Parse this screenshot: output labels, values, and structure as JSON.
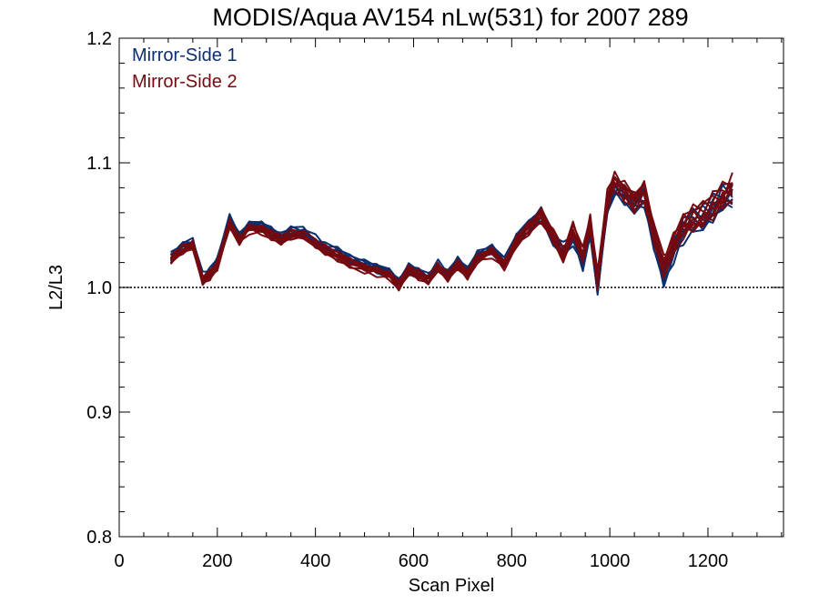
{
  "chart_data": {
    "type": "line",
    "title": "MODIS/Aqua AV154 nLw(531) for 2007 289",
    "xlabel": "Scan Pixel",
    "ylabel": "L2/L3",
    "xlim": [
      0,
      1354
    ],
    "ylim": [
      0.8,
      1.2
    ],
    "x_ticks": [
      0,
      200,
      400,
      600,
      800,
      1000,
      1200
    ],
    "x_tick_labels": [
      "0",
      "200",
      "400",
      "600",
      "800",
      "1000",
      "1200"
    ],
    "y_ticks": [
      0.8,
      0.9,
      1.0,
      1.1,
      1.2
    ],
    "y_tick_labels": [
      "0.8",
      "0.9",
      "1.0",
      "1.1",
      "1.2"
    ],
    "reference_line": {
      "y": 1.0,
      "style": "dotted"
    },
    "legend_position": "top-left",
    "grid": false,
    "colors": {
      "mirror_side_1": "#0b2f6e",
      "mirror_side_2": "#740a0f"
    },
    "x": [
      105,
      130,
      150,
      170,
      185,
      200,
      225,
      245,
      265,
      290,
      310,
      330,
      350,
      375,
      400,
      420,
      445,
      470,
      500,
      525,
      550,
      570,
      590,
      610,
      630,
      650,
      670,
      690,
      710,
      730,
      760,
      785,
      810,
      835,
      860,
      885,
      905,
      925,
      945,
      960,
      975,
      995,
      1010,
      1030,
      1050,
      1070,
      1090,
      1110,
      1130,
      1150,
      1170,
      1190,
      1210,
      1230,
      1250
    ],
    "series": [
      {
        "name": "Mirror-Side 1",
        "values": [
          1.024,
          1.032,
          1.036,
          1.008,
          1.012,
          1.02,
          1.055,
          1.04,
          1.05,
          1.05,
          1.045,
          1.04,
          1.045,
          1.045,
          1.038,
          1.032,
          1.028,
          1.022,
          1.018,
          1.015,
          1.012,
          1.004,
          1.016,
          1.012,
          1.008,
          1.018,
          1.01,
          1.02,
          1.012,
          1.025,
          1.03,
          1.02,
          1.04,
          1.05,
          1.06,
          1.04,
          1.03,
          1.04,
          1.02,
          1.045,
          1.0,
          1.065,
          1.08,
          1.075,
          1.068,
          1.075,
          1.04,
          1.012,
          1.03,
          1.045,
          1.052,
          1.055,
          1.062,
          1.07,
          1.075
        ]
      },
      {
        "name": "Mirror-Side 2",
        "values": [
          1.022,
          1.03,
          1.034,
          1.006,
          1.01,
          1.018,
          1.052,
          1.038,
          1.047,
          1.046,
          1.042,
          1.038,
          1.042,
          1.042,
          1.035,
          1.03,
          1.025,
          1.02,
          1.015,
          1.013,
          1.01,
          1.002,
          1.014,
          1.01,
          1.006,
          1.016,
          1.008,
          1.018,
          1.01,
          1.023,
          1.028,
          1.018,
          1.038,
          1.048,
          1.058,
          1.042,
          1.026,
          1.045,
          1.025,
          1.05,
          1.005,
          1.07,
          1.085,
          1.078,
          1.07,
          1.078,
          1.045,
          1.018,
          1.033,
          1.048,
          1.054,
          1.057,
          1.064,
          1.072,
          1.08
        ]
      }
    ]
  }
}
